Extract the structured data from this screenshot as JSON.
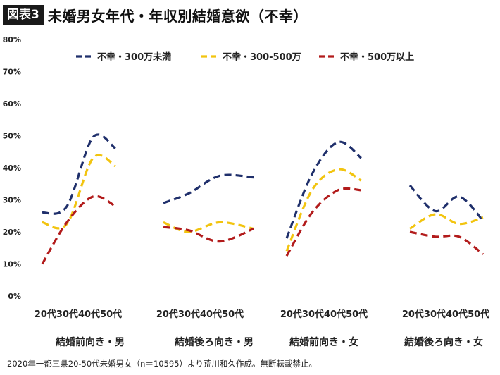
{
  "header": {
    "figure_label": "図表3",
    "title": "未婚男女年代・年収別結婚意欲（不幸）"
  },
  "footer": {
    "source": "2020年一都三県20-50代未婚男女（n＝10595）より荒川和久作成。無断転載禁止。"
  },
  "chart_data": {
    "type": "line",
    "line_style": "dashed",
    "title": "未婚男女年代・年収別結婚意欲（不幸）",
    "ylim": [
      0,
      80
    ],
    "yticks": [
      "0%",
      "10%",
      "20%",
      "30%",
      "40%",
      "50%",
      "60%",
      "70%",
      "80%"
    ],
    "grid": false,
    "legend_position": "top",
    "groups": [
      {
        "label": "結婚前向き・男",
        "categories": [
          "20代",
          "30代",
          "40代",
          "50代"
        ],
        "category_label": "20代30代40代50代",
        "series": [
          {
            "name": "不幸・300万未満",
            "values": [
              26,
              28,
              49.5,
              46
            ]
          },
          {
            "name": "不幸・300-500万",
            "values": [
              23,
              22.5,
              43,
              40.5
            ]
          },
          {
            "name": "不幸・500万以上",
            "values": [
              10,
              23,
              31,
              28
            ]
          }
        ]
      },
      {
        "label": "結婚後ろ向き・男",
        "categories": [
          "20代",
          "30代",
          "40代",
          "50代"
        ],
        "category_label": "20代30代40代50代",
        "series": [
          {
            "name": "不幸・300万未満",
            "values": [
              29,
              32,
              37.5,
              37
            ]
          },
          {
            "name": "不幸・300-500万",
            "values": [
              23,
              20,
              23,
              21
            ]
          },
          {
            "name": "不幸・500万以上",
            "values": [
              21.5,
              20.5,
              17,
              21
            ]
          }
        ]
      },
      {
        "label": "結婚前向き・女",
        "categories": [
          "20代",
          "30代",
          "40代",
          "50代"
        ],
        "category_label": "20代30代40代50代",
        "series": [
          {
            "name": "不幸・300万未満",
            "values": [
              18,
              38,
              48,
              43
            ]
          },
          {
            "name": "不幸・300-500万",
            "values": [
              14,
              33,
              39.5,
              36
            ]
          },
          {
            "name": "不幸・500万以上",
            "values": [
              12.5,
              26,
              33,
              33
            ]
          }
        ]
      },
      {
        "label": "結婚後ろ向き・女",
        "categories": [
          "20代",
          "30代",
          "40代",
          "50代"
        ],
        "category_label": "20代30代40代50代",
        "series": [
          {
            "name": "不幸・300万未満",
            "values": [
              34.5,
              26.5,
              31,
              23.5
            ]
          },
          {
            "name": "不幸・300-500万",
            "values": [
              21,
              25.5,
              22.5,
              24.5
            ]
          },
          {
            "name": "不幸・500万以上",
            "values": [
              20,
              18.5,
              18.5,
              13
            ]
          }
        ]
      }
    ],
    "colors": [
      "#1f2f6b",
      "#f2c40f",
      "#b21b1b"
    ]
  }
}
